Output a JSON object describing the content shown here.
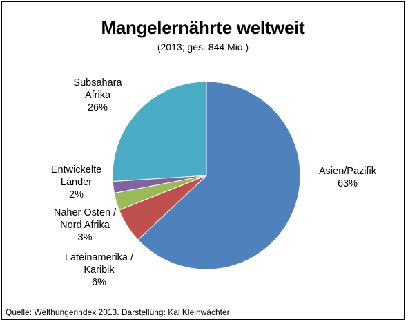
{
  "chart_data": {
    "type": "pie",
    "title": "Mangelernährte weltweit",
    "subtitle": "(2013; ges. 844 Mio.)",
    "slices": [
      {
        "name_lines": [
          "Asien/Pazifik"
        ],
        "value": 63,
        "label": "63%",
        "color": "#4F81BD"
      },
      {
        "name_lines": [
          "Lateinamerika /",
          "Karibik"
        ],
        "value": 6,
        "label": "6%",
        "color": "#C0504D"
      },
      {
        "name_lines": [
          "Naher Osten /",
          "Nord Afrika"
        ],
        "value": 3,
        "label": "3%",
        "color": "#9BBB59"
      },
      {
        "name_lines": [
          "Entwickelte",
          "Länder"
        ],
        "value": 2,
        "label": "2%",
        "color": "#8064A2"
      },
      {
        "name_lines": [
          "Subsahara",
          "Afrika"
        ],
        "value": 26,
        "label": "26%",
        "color": "#4BACC6"
      }
    ],
    "legend": "none"
  },
  "footer": {
    "source": "Quelle: Welthungerindex 2013. Darstellung: Kai Kleinwächter"
  }
}
